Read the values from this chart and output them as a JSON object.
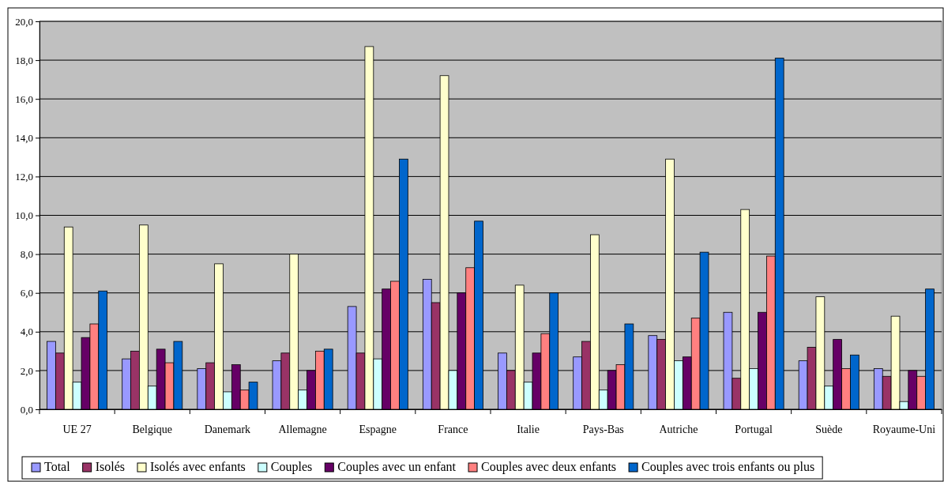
{
  "chart_data": {
    "type": "bar",
    "categories": [
      "UE 27",
      "Belgique",
      "Danemark",
      "Allemagne",
      "Espagne",
      "France",
      "Italie",
      "Pays-Bas",
      "Autriche",
      "Portugal",
      "Suède",
      "Royaume-Uni"
    ],
    "series": [
      {
        "name": "Total",
        "color": "#9999ff",
        "values": [
          3.5,
          2.6,
          2.1,
          2.5,
          5.3,
          6.7,
          2.9,
          2.7,
          3.8,
          5.0,
          2.5,
          2.1
        ]
      },
      {
        "name": "Isolés",
        "color": "#993366",
        "values": [
          2.9,
          3.0,
          2.4,
          2.9,
          2.9,
          5.5,
          2.0,
          3.5,
          3.6,
          1.6,
          3.2,
          1.7
        ]
      },
      {
        "name": "Isolés avec enfants",
        "color": "#ffffcc",
        "values": [
          9.4,
          9.5,
          7.5,
          8.0,
          18.7,
          17.2,
          6.4,
          9.0,
          12.9,
          10.3,
          5.8,
          4.8
        ]
      },
      {
        "name": "Couples",
        "color": "#ccffff",
        "values": [
          1.4,
          1.2,
          0.9,
          1.0,
          2.6,
          2.0,
          1.4,
          1.0,
          2.5,
          2.1,
          1.2,
          0.4
        ]
      },
      {
        "name": "Couples avec un enfant",
        "color": "#660066",
        "values": [
          3.7,
          3.1,
          2.3,
          2.0,
          6.2,
          6.0,
          2.9,
          2.0,
          2.7,
          5.0,
          3.6,
          2.0
        ]
      },
      {
        "name": "Couples avec deux enfants",
        "color": "#ff8080",
        "values": [
          4.4,
          2.4,
          1.0,
          3.0,
          6.6,
          7.3,
          3.9,
          2.3,
          4.7,
          7.9,
          2.1,
          1.7
        ]
      },
      {
        "name": "Couples avec trois enfants ou plus",
        "color": "#0066cc",
        "values": [
          6.1,
          3.5,
          1.4,
          3.1,
          12.9,
          9.7,
          6.0,
          4.4,
          8.1,
          18.1,
          2.8,
          6.2
        ]
      }
    ],
    "ylim": [
      0,
      20
    ],
    "yticks": [
      {
        "value": 0,
        "label": "0,0"
      },
      {
        "value": 2,
        "label": "2,0"
      },
      {
        "value": 4,
        "label": "4,0"
      },
      {
        "value": 6,
        "label": "6,0"
      },
      {
        "value": 8,
        "label": "8,0"
      },
      {
        "value": 10,
        "label": "10,0"
      },
      {
        "value": 12,
        "label": "12,0"
      },
      {
        "value": 14,
        "label": "14,0"
      },
      {
        "value": 16,
        "label": "16,0"
      },
      {
        "value": 18,
        "label": "18,0"
      },
      {
        "value": 20,
        "label": "20,0"
      }
    ],
    "grid": "y",
    "legend": "bottom"
  }
}
